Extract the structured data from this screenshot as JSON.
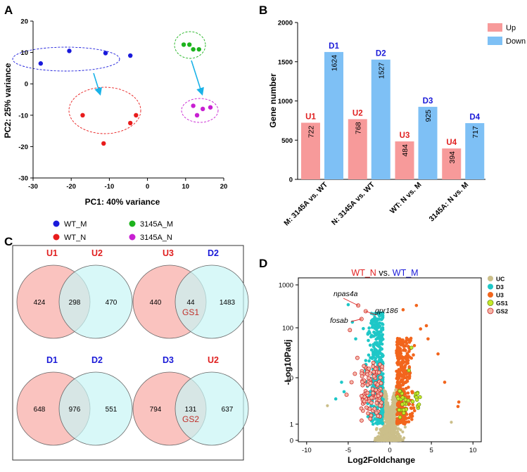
{
  "panels": {
    "A": "A",
    "B": "B",
    "C": "C",
    "D": "D"
  },
  "chart_data": [
    {
      "panel": "A",
      "type": "scatter",
      "xlabel": "PC1: 40% variance",
      "ylabel": "PC2: 25% variance",
      "xlim": [
        -30,
        20
      ],
      "ylim": [
        -30,
        20
      ],
      "xticks": [
        -30,
        -20,
        -10,
        0,
        10,
        20
      ],
      "yticks": [
        -30,
        -20,
        -10,
        0,
        10,
        20
      ],
      "series": [
        {
          "name": "WT_M",
          "color": "#1a1adb",
          "points": [
            [
              -28,
              6.5
            ],
            [
              -20.5,
              10.5
            ],
            [
              -11,
              9.8
            ],
            [
              -4.5,
              9
            ]
          ]
        },
        {
          "name": "WT_N",
          "color": "#e81c1c",
          "points": [
            [
              -17,
              -10
            ],
            [
              -11.5,
              -19
            ],
            [
              -4.5,
              -12.5
            ],
            [
              -3,
              -10
            ]
          ]
        },
        {
          "name": "3145A_M",
          "color": "#1db31d",
          "points": [
            [
              9.5,
              12.5
            ],
            [
              11,
              12.5
            ],
            [
              12,
              11
            ],
            [
              13.5,
              11
            ]
          ]
        },
        {
          "name": "3145A_N",
          "color": "#c81fd2",
          "points": [
            [
              12,
              -7
            ],
            [
              13,
              -10
            ],
            [
              14.5,
              -8
            ],
            [
              16.5,
              -7.5
            ]
          ]
        }
      ],
      "legend_order": [
        "WT_M",
        "3145A_M",
        "WT_N",
        "3145A_N"
      ]
    },
    {
      "panel": "B",
      "type": "bar",
      "ylabel": "Gene number",
      "ylim": [
        0,
        2000
      ],
      "yticks": [
        0,
        500,
        1000,
        1500,
        2000
      ],
      "categories": [
        "M: 3145A vs. WT",
        "N: 3145A vs. WT",
        "WT: N vs. M",
        "3145A: N vs. M"
      ],
      "series": [
        {
          "name": "Up",
          "color": "#f79a9a",
          "values": [
            722,
            768,
            484,
            394
          ],
          "labels": [
            "U1",
            "U2",
            "U3",
            "U4"
          ],
          "label_color": "#e02020"
        },
        {
          "name": "Down",
          "color": "#7ec0f5",
          "values": [
            1624,
            1527,
            925,
            717
          ],
          "labels": [
            "D1",
            "D2",
            "D3",
            "D4"
          ],
          "label_color": "#1a1ad8"
        }
      ],
      "legend_placement": "top-right"
    },
    {
      "panel": "C",
      "type": "venn",
      "diagrams": [
        {
          "left": "U1",
          "right": "U2",
          "left_color": "#e02020",
          "right_color": "#e02020",
          "left_only": "424",
          "overlap": "298",
          "right_only": "470",
          "overlap_label": ""
        },
        {
          "left": "U3",
          "right": "D2",
          "left_color": "#e02020",
          "right_color": "#1a1ad8",
          "left_only": "440",
          "overlap": "44",
          "right_only": "1483",
          "overlap_label": "GS1"
        },
        {
          "left": "D1",
          "right": "D2",
          "left_color": "#1a1ad8",
          "right_color": "#1a1ad8",
          "left_only": "648",
          "overlap": "976",
          "right_only": "551",
          "overlap_label": ""
        },
        {
          "left": "D3",
          "right": "U2",
          "left_color": "#1a1ad8",
          "right_color": "#e02020",
          "left_only": "794",
          "overlap": "131",
          "right_only": "637",
          "overlap_label": "GS2"
        }
      ]
    },
    {
      "panel": "D",
      "type": "scatter",
      "title_parts": [
        "WT_N",
        " vs. ",
        "WT_M"
      ],
      "xlabel": "Log2Foldchange",
      "ylabel": "-Log10Padj",
      "xlim": [
        -11,
        11
      ],
      "log_y": true,
      "xticks": [
        -10,
        -5,
        0,
        5,
        10
      ],
      "yticks": [
        "0",
        "1",
        "10",
        "100",
        "1000"
      ],
      "legend": [
        {
          "name": "UC",
          "color": "#cbbf8a"
        },
        {
          "name": "D3",
          "color": "#1ec7c7"
        },
        {
          "name": "U3",
          "color": "#f2651c"
        },
        {
          "name": "GS1",
          "color": "#c6ea2a"
        },
        {
          "name": "GS2",
          "color": "#f4b7a8"
        }
      ],
      "annotations": [
        {
          "text": "npas4a",
          "x": -4.9,
          "y": 270
        },
        {
          "text": "fosab",
          "x": -3.4,
          "y": 150
        },
        {
          "text": "gpr186",
          "x": -2.8,
          "y": 210
        }
      ]
    }
  ]
}
